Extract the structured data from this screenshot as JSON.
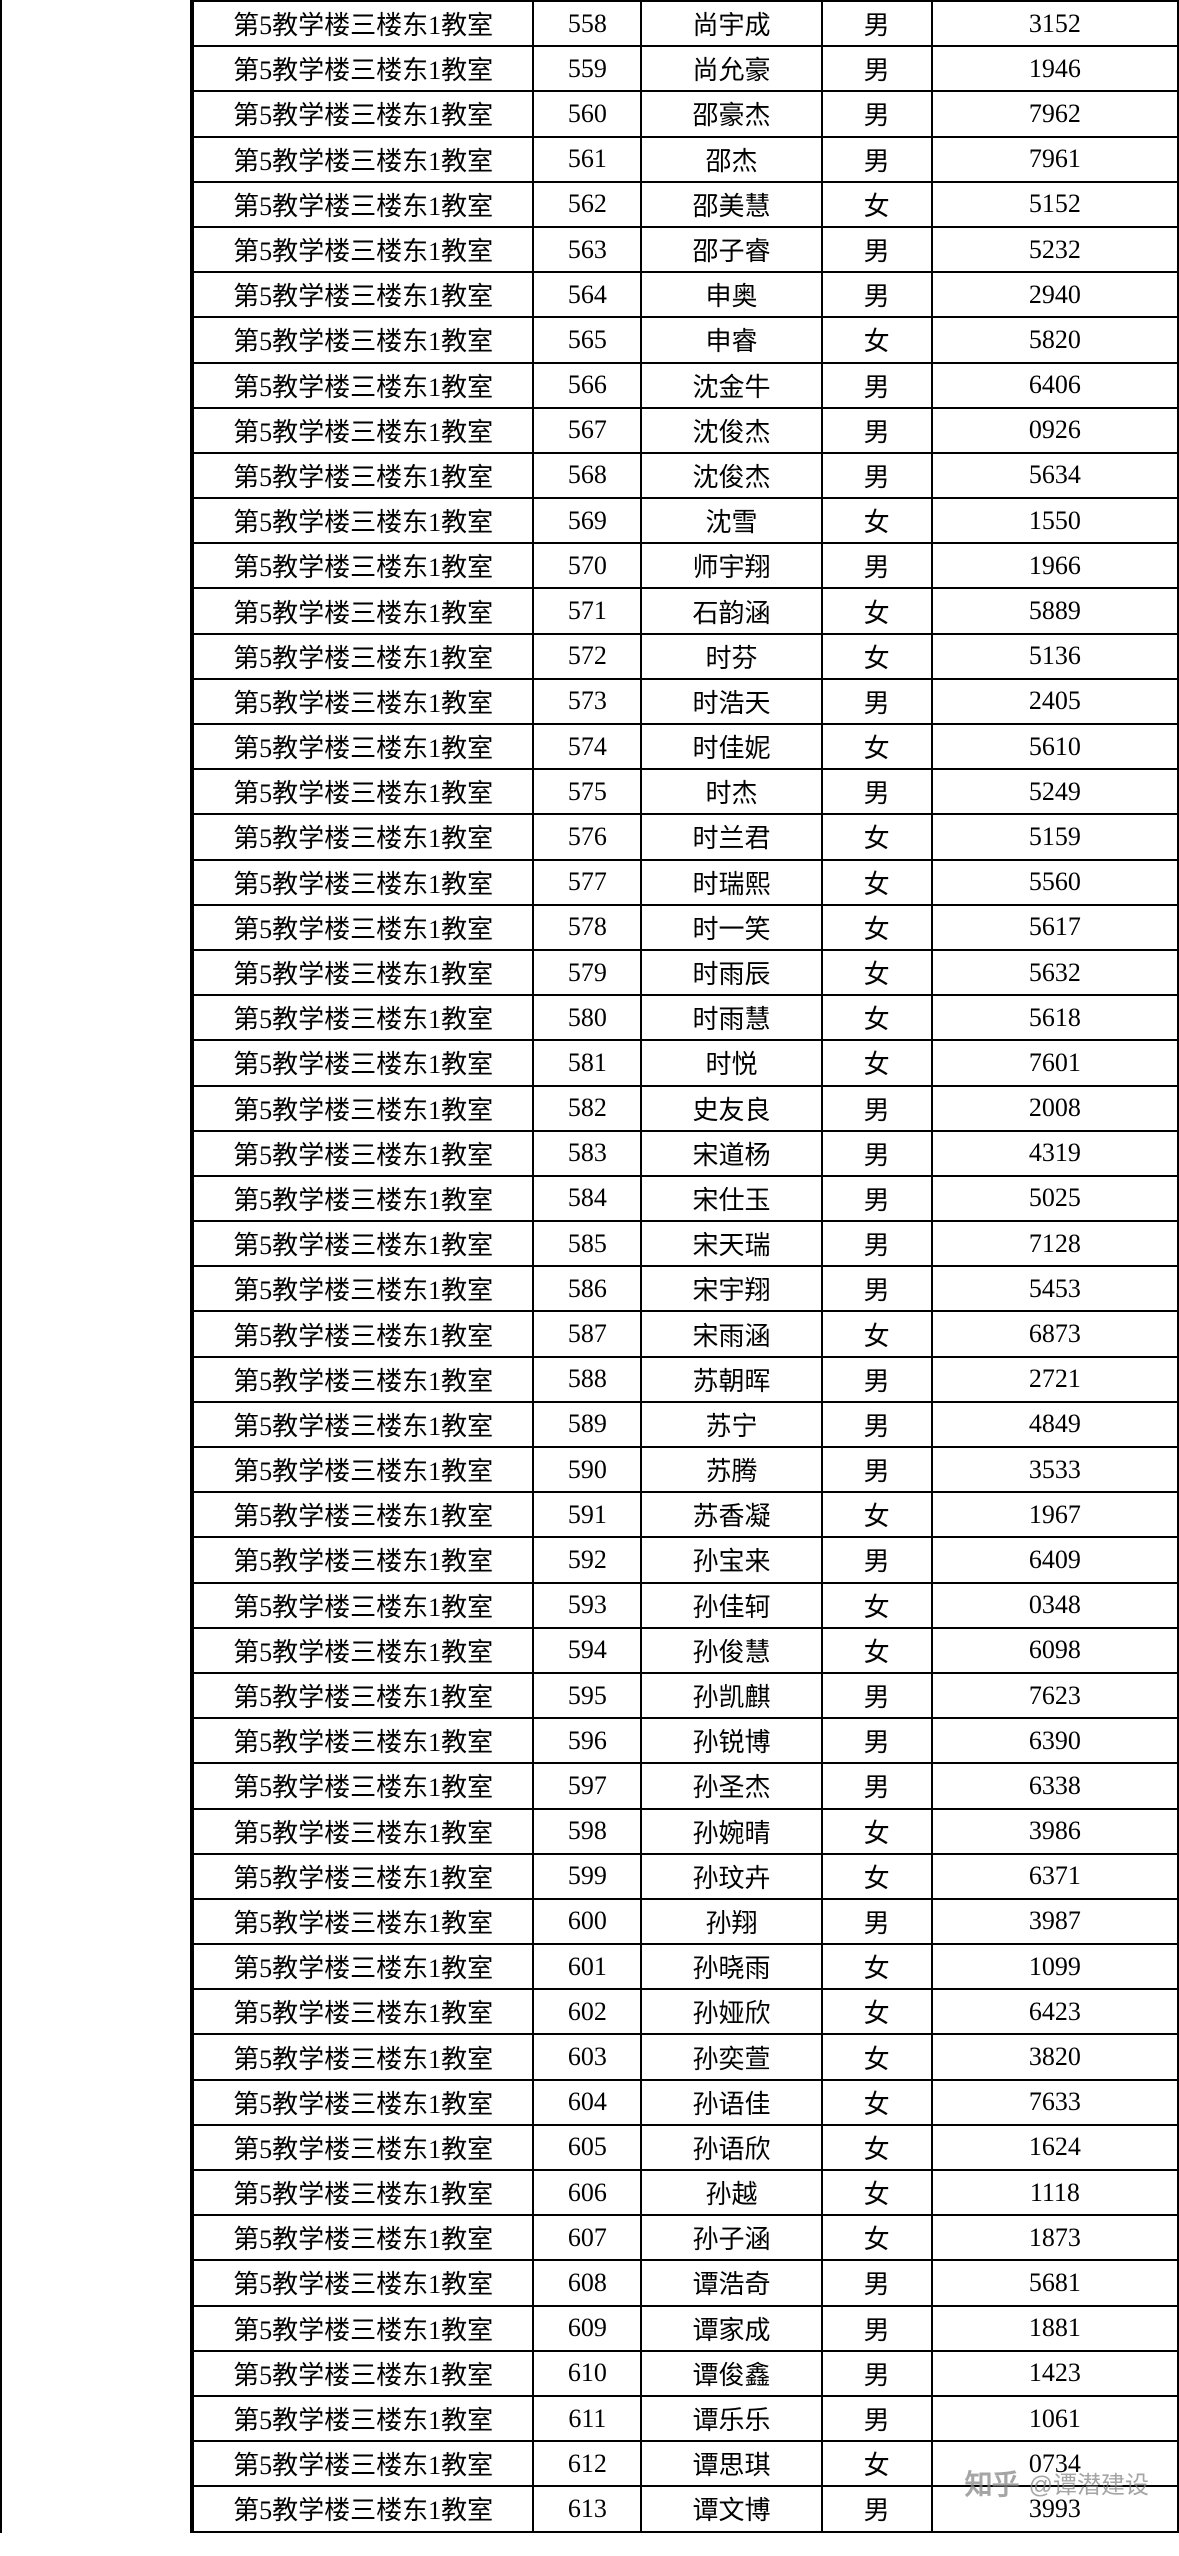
{
  "table": {
    "room_text": "第5教学楼三楼东1教室",
    "columns": {
      "room_width": 340,
      "id_width": 108,
      "name_width": 180,
      "gender_width": 110,
      "code_width": 246
    },
    "border_color": "#000000",
    "text_color": "#000000",
    "background_color": "#ffffff",
    "font_size": 26,
    "row_height": 45.2,
    "rows": [
      {
        "id": "558",
        "name": "尚宇成",
        "gender": "男",
        "code": "3152"
      },
      {
        "id": "559",
        "name": "尚允豪",
        "gender": "男",
        "code": "1946"
      },
      {
        "id": "560",
        "name": "邵豪杰",
        "gender": "男",
        "code": "7962"
      },
      {
        "id": "561",
        "name": "邵杰",
        "gender": "男",
        "code": "7961"
      },
      {
        "id": "562",
        "name": "邵美慧",
        "gender": "女",
        "code": "5152"
      },
      {
        "id": "563",
        "name": "邵子睿",
        "gender": "男",
        "code": "5232"
      },
      {
        "id": "564",
        "name": "申奥",
        "gender": "男",
        "code": "2940"
      },
      {
        "id": "565",
        "name": "申睿",
        "gender": "女",
        "code": "5820"
      },
      {
        "id": "566",
        "name": "沈金牛",
        "gender": "男",
        "code": "6406"
      },
      {
        "id": "567",
        "name": "沈俊杰",
        "gender": "男",
        "code": "0926"
      },
      {
        "id": "568",
        "name": "沈俊杰",
        "gender": "男",
        "code": "5634"
      },
      {
        "id": "569",
        "name": "沈雪",
        "gender": "女",
        "code": "1550"
      },
      {
        "id": "570",
        "name": "师宇翔",
        "gender": "男",
        "code": "1966"
      },
      {
        "id": "571",
        "name": "石韵涵",
        "gender": "女",
        "code": "5889"
      },
      {
        "id": "572",
        "name": "时芬",
        "gender": "女",
        "code": "5136"
      },
      {
        "id": "573",
        "name": "时浩天",
        "gender": "男",
        "code": "2405"
      },
      {
        "id": "574",
        "name": "时佳妮",
        "gender": "女",
        "code": "5610"
      },
      {
        "id": "575",
        "name": "时杰",
        "gender": "男",
        "code": "5249"
      },
      {
        "id": "576",
        "name": "时兰君",
        "gender": "女",
        "code": "5159"
      },
      {
        "id": "577",
        "name": "时瑞熙",
        "gender": "女",
        "code": "5560"
      },
      {
        "id": "578",
        "name": "时一笑",
        "gender": "女",
        "code": "5617"
      },
      {
        "id": "579",
        "name": "时雨辰",
        "gender": "女",
        "code": "5632"
      },
      {
        "id": "580",
        "name": "时雨慧",
        "gender": "女",
        "code": "5618"
      },
      {
        "id": "581",
        "name": "时悦",
        "gender": "女",
        "code": "7601"
      },
      {
        "id": "582",
        "name": "史友良",
        "gender": "男",
        "code": "2008"
      },
      {
        "id": "583",
        "name": "宋道杨",
        "gender": "男",
        "code": "4319"
      },
      {
        "id": "584",
        "name": "宋仕玉",
        "gender": "男",
        "code": "5025"
      },
      {
        "id": "585",
        "name": "宋天瑞",
        "gender": "男",
        "code": "7128"
      },
      {
        "id": "586",
        "name": "宋宇翔",
        "gender": "男",
        "code": "5453"
      },
      {
        "id": "587",
        "name": "宋雨涵",
        "gender": "女",
        "code": "6873"
      },
      {
        "id": "588",
        "name": "苏朝晖",
        "gender": "男",
        "code": "2721"
      },
      {
        "id": "589",
        "name": "苏宁",
        "gender": "男",
        "code": "4849"
      },
      {
        "id": "590",
        "name": "苏腾",
        "gender": "男",
        "code": "3533"
      },
      {
        "id": "591",
        "name": "苏香凝",
        "gender": "女",
        "code": "1967"
      },
      {
        "id": "592",
        "name": "孙宝来",
        "gender": "男",
        "code": "6409"
      },
      {
        "id": "593",
        "name": "孙佳轲",
        "gender": "女",
        "code": "0348"
      },
      {
        "id": "594",
        "name": "孙俊慧",
        "gender": "女",
        "code": "6098"
      },
      {
        "id": "595",
        "name": "孙凯麒",
        "gender": "男",
        "code": "7623"
      },
      {
        "id": "596",
        "name": "孙锐博",
        "gender": "男",
        "code": "6390"
      },
      {
        "id": "597",
        "name": "孙圣杰",
        "gender": "男",
        "code": "6338"
      },
      {
        "id": "598",
        "name": "孙婉晴",
        "gender": "女",
        "code": "3986"
      },
      {
        "id": "599",
        "name": "孙玟卉",
        "gender": "女",
        "code": "6371"
      },
      {
        "id": "600",
        "name": "孙翔",
        "gender": "男",
        "code": "3987"
      },
      {
        "id": "601",
        "name": "孙晓雨",
        "gender": "女",
        "code": "1099"
      },
      {
        "id": "602",
        "name": "孙娅欣",
        "gender": "女",
        "code": "6423"
      },
      {
        "id": "603",
        "name": "孙奕萱",
        "gender": "女",
        "code": "3820"
      },
      {
        "id": "604",
        "name": "孙语佳",
        "gender": "女",
        "code": "7633"
      },
      {
        "id": "605",
        "name": "孙语欣",
        "gender": "女",
        "code": "1624"
      },
      {
        "id": "606",
        "name": "孙越",
        "gender": "女",
        "code": "1118"
      },
      {
        "id": "607",
        "name": "孙子涵",
        "gender": "女",
        "code": "1873"
      },
      {
        "id": "608",
        "name": "谭浩奇",
        "gender": "男",
        "code": "5681"
      },
      {
        "id": "609",
        "name": "谭家成",
        "gender": "男",
        "code": "1881"
      },
      {
        "id": "610",
        "name": "谭俊鑫",
        "gender": "男",
        "code": "1423"
      },
      {
        "id": "611",
        "name": "谭乐乐",
        "gender": "男",
        "code": "1061"
      },
      {
        "id": "612",
        "name": "谭思琪",
        "gender": "女",
        "code": "0734"
      },
      {
        "id": "613",
        "name": "谭文博",
        "gender": "男",
        "code": "3993"
      }
    ]
  },
  "watermark": {
    "logo": "知乎",
    "text": "@谭潜建设",
    "color": "#888888"
  }
}
